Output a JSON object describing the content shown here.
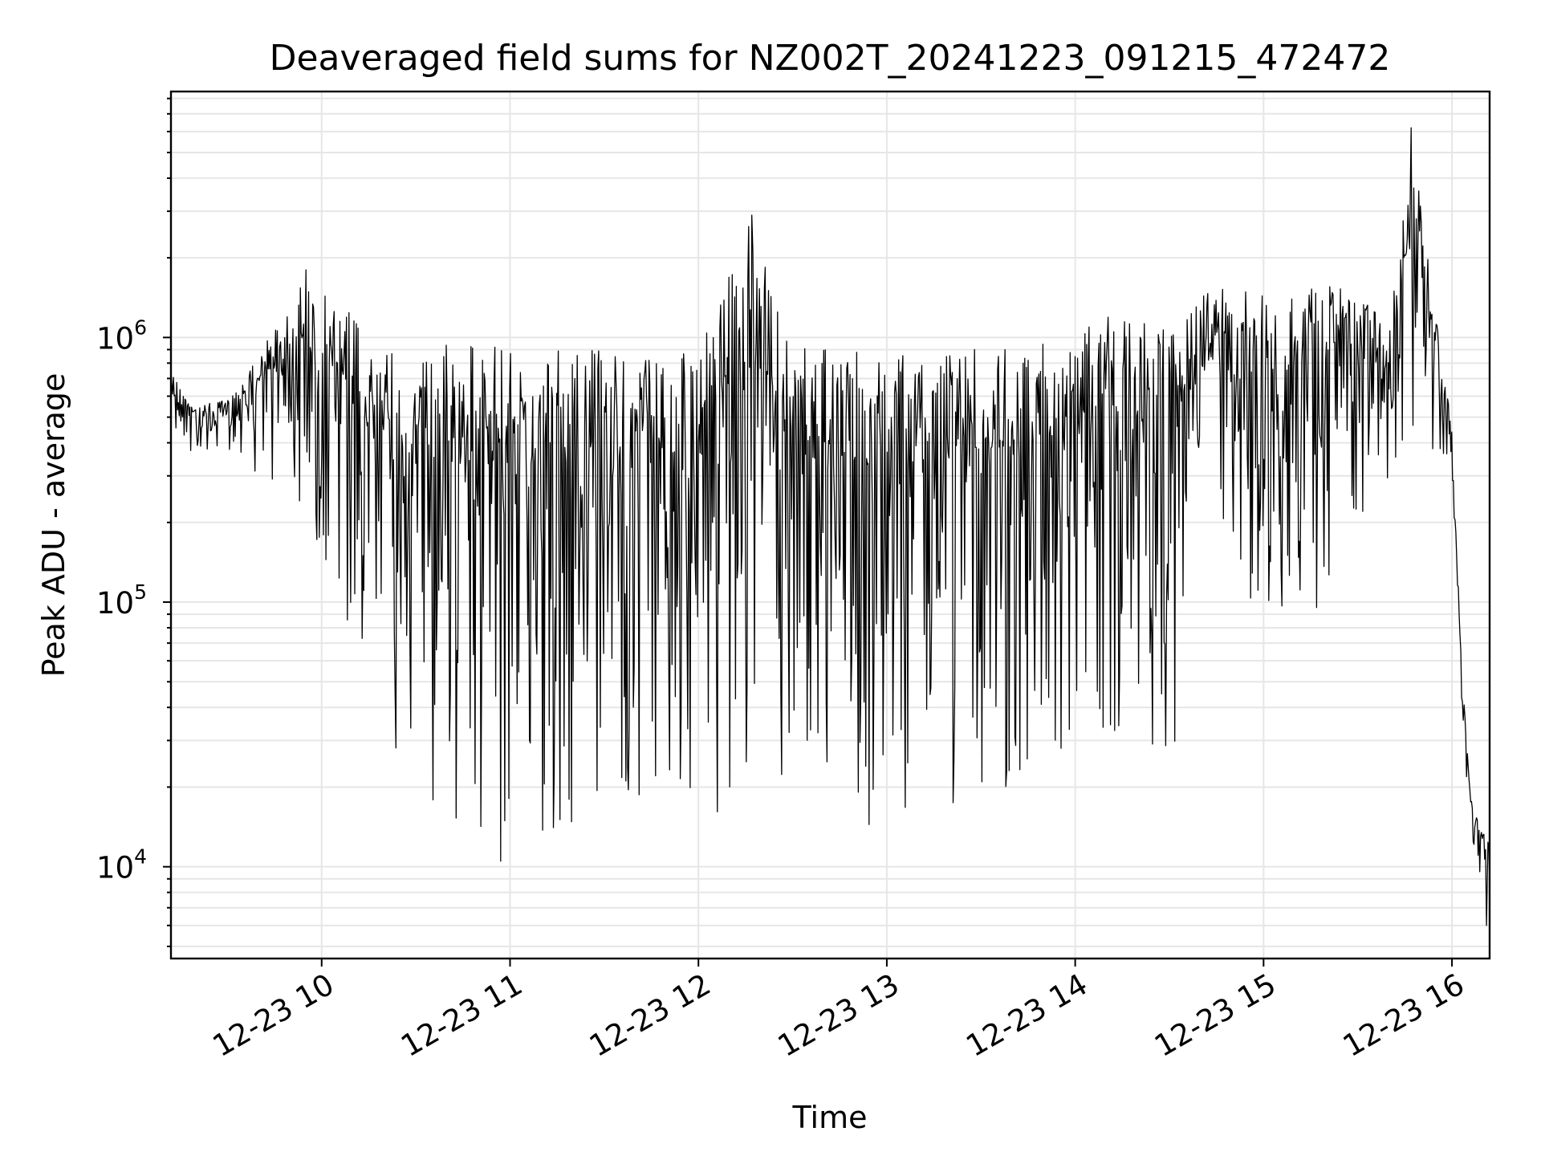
{
  "chart_data": {
    "type": "line",
    "title": "Deaveraged field sums for NZ002T_20241223_091215_472472",
    "xlabel": "Time",
    "ylabel": "Peak ADU - average",
    "yscale": "log",
    "grid": true,
    "legend": "none",
    "xlim": [
      "2024-12-23 09:12",
      "2024-12-23 16:12"
    ],
    "ylim": [
      4500,
      8500000
    ],
    "x_ticks": [
      {
        "t": "2024-12-23 10:00",
        "label": "12-23 10"
      },
      {
        "t": "2024-12-23 11:00",
        "label": "12-23 11"
      },
      {
        "t": "2024-12-23 12:00",
        "label": "12-23 12"
      },
      {
        "t": "2024-12-23 13:00",
        "label": "12-23 13"
      },
      {
        "t": "2024-12-23 14:00",
        "label": "12-23 14"
      },
      {
        "t": "2024-12-23 15:00",
        "label": "12-23 15"
      },
      {
        "t": "2024-12-23 16:00",
        "label": "12-23 16"
      }
    ],
    "y_ticks": [
      {
        "value": 10000,
        "base": "10",
        "exp": "4"
      },
      {
        "value": 100000,
        "base": "10",
        "exp": "5"
      },
      {
        "value": 1000000,
        "base": "10",
        "exp": "6"
      }
    ],
    "series": [
      {
        "color": "#000000",
        "upper_envelope": [
          [
            "2024-12-23 09:12",
            750000
          ],
          [
            "2024-12-23 09:20",
            560000
          ],
          [
            "2024-12-23 09:30",
            580000
          ],
          [
            "2024-12-23 09:40",
            900000
          ],
          [
            "2024-12-23 09:50",
            1300000
          ],
          [
            "2024-12-23 09:55",
            1800000
          ],
          [
            "2024-12-23 10:00",
            1500000
          ],
          [
            "2024-12-23 10:10",
            1300000
          ],
          [
            "2024-12-23 10:15",
            1000000
          ],
          [
            "2024-12-23 10:30",
            950000
          ],
          [
            "2024-12-23 11:00",
            950000
          ],
          [
            "2024-12-23 11:30",
            900000
          ],
          [
            "2024-12-23 12:00",
            900000
          ],
          [
            "2024-12-23 12:17",
            2900000
          ],
          [
            "2024-12-23 12:30",
            950000
          ],
          [
            "2024-12-23 13:00",
            900000
          ],
          [
            "2024-12-23 13:30",
            950000
          ],
          [
            "2024-12-23 13:55",
            950000
          ],
          [
            "2024-12-23 14:10",
            1200000
          ],
          [
            "2024-12-23 14:30",
            1100000
          ],
          [
            "2024-12-23 14:45",
            1600000
          ],
          [
            "2024-12-23 15:00",
            1500000
          ],
          [
            "2024-12-23 15:15",
            1600000
          ],
          [
            "2024-12-23 15:30",
            1500000
          ],
          [
            "2024-12-23 15:40",
            1100000
          ],
          [
            "2024-12-23 15:47",
            6200000
          ],
          [
            "2024-12-23 15:55",
            1200000
          ],
          [
            "2024-12-23 16:00",
            450000
          ],
          [
            "2024-12-23 16:03",
            60000
          ],
          [
            "2024-12-23 16:06",
            18000
          ],
          [
            "2024-12-23 16:12",
            12000
          ]
        ],
        "lower_envelope": [
          [
            "2024-12-23 09:12",
            450000
          ],
          [
            "2024-12-23 09:20",
            350000
          ],
          [
            "2024-12-23 09:30",
            380000
          ],
          [
            "2024-12-23 09:40",
            300000
          ],
          [
            "2024-12-23 09:50",
            250000
          ],
          [
            "2024-12-23 10:00",
            150000
          ],
          [
            "2024-12-23 10:10",
            70000
          ],
          [
            "2024-12-23 10:20",
            35000
          ],
          [
            "2024-12-23 10:30",
            16000
          ],
          [
            "2024-12-23 11:00",
            13000
          ],
          [
            "2024-12-23 11:30",
            14000
          ],
          [
            "2024-12-23 12:00",
            15000
          ],
          [
            "2024-12-23 12:30",
            16000
          ],
          [
            "2024-12-23 13:00",
            14000
          ],
          [
            "2024-12-23 13:30",
            18000
          ],
          [
            "2024-12-23 14:00",
            22000
          ],
          [
            "2024-12-23 14:30",
            24000
          ],
          [
            "2024-12-23 14:45",
            150000
          ],
          [
            "2024-12-23 15:00",
            90000
          ],
          [
            "2024-12-23 15:15",
            80000
          ],
          [
            "2024-12-23 15:30",
            180000
          ],
          [
            "2024-12-23 15:45",
            250000
          ],
          [
            "2024-12-23 15:55",
            400000
          ],
          [
            "2024-12-23 16:00",
            300000
          ],
          [
            "2024-12-23 16:03",
            45000
          ],
          [
            "2024-12-23 16:06",
            12000
          ],
          [
            "2024-12-23 16:12",
            6000
          ]
        ],
        "spikes": [
          [
            "2024-12-23 09:55",
            1800000
          ],
          [
            "2024-12-23 12:17",
            2900000
          ],
          [
            "2024-12-23 15:47",
            6200000
          ],
          [
            "2024-12-23 10:57",
            10500
          ],
          [
            "2024-12-23 16:11",
            6000
          ]
        ]
      }
    ]
  }
}
